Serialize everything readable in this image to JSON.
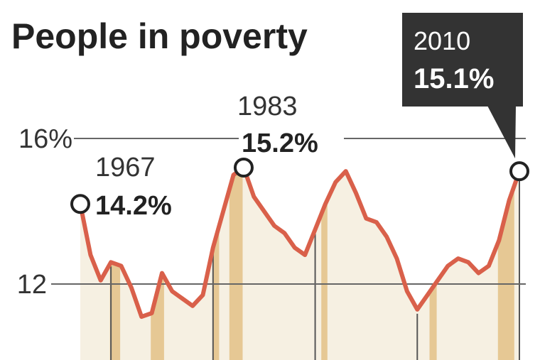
{
  "chart_data": {
    "type": "area",
    "title": "People in poverty",
    "unit": "%",
    "y_ticks": [
      {
        "value": 16,
        "label": "16%"
      },
      {
        "value": 12,
        "label": "12"
      }
    ],
    "ylim": [
      10.0,
      17.5
    ],
    "xlim": [
      1967,
      2010
    ],
    "grid": true,
    "colors": {
      "line": "#d9604a",
      "area": "#f6f0e2",
      "recession": "#e6c894",
      "text": "#222222",
      "callout_bg": "#333333"
    },
    "recessions": [
      [
        1969.9,
        1970.9
      ],
      [
        1973.9,
        1975.2
      ],
      [
        1980.0,
        1980.6
      ],
      [
        1981.6,
        1982.9
      ],
      [
        1990.6,
        1991.2
      ],
      [
        2001.2,
        2001.9
      ],
      [
        2007.9,
        2009.5
      ]
    ],
    "series": [
      {
        "x": [
          1967,
          1968,
          1969,
          1970,
          1971,
          1972,
          1973,
          1974,
          1975,
          1976,
          1977,
          1978,
          1979,
          1980,
          1981,
          1982,
          1983,
          1984,
          1985,
          1986,
          1987,
          1988,
          1989,
          1990,
          1991,
          1992,
          1993,
          1994,
          1995,
          1996,
          1997,
          1998,
          1999,
          2000,
          2001,
          2002,
          2003,
          2004,
          2005,
          2006,
          2007,
          2008,
          2009,
          2010
        ],
        "values": [
          14.2,
          12.8,
          12.1,
          12.6,
          12.5,
          11.9,
          11.1,
          11.2,
          12.3,
          11.8,
          11.6,
          11.4,
          11.7,
          13.0,
          14.0,
          15.0,
          15.2,
          14.4,
          14.0,
          13.6,
          13.4,
          13.0,
          12.8,
          13.5,
          14.2,
          14.8,
          15.1,
          14.5,
          13.8,
          13.7,
          13.3,
          12.7,
          11.8,
          11.3,
          11.7,
          12.1,
          12.5,
          12.7,
          12.6,
          12.3,
          12.5,
          13.2,
          14.3,
          15.1
        ]
      }
    ],
    "annotations": [
      {
        "year": 1967,
        "year_label": "1967",
        "value": 14.2,
        "value_label": "14.2%"
      },
      {
        "year": 1983,
        "year_label": "1983",
        "value": 15.2,
        "value_label": "15.2%"
      },
      {
        "year": 2010,
        "year_label": "2010",
        "value": 15.1,
        "value_label": "15.1%",
        "callout": true
      }
    ]
  }
}
